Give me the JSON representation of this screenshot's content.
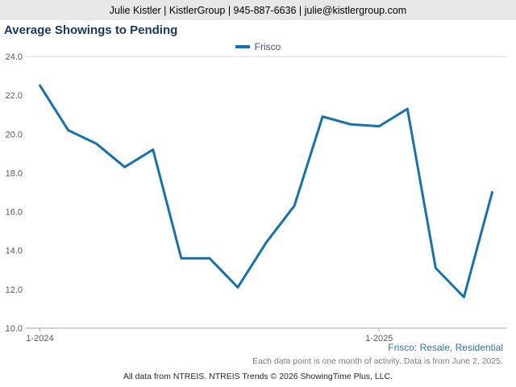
{
  "header": {
    "contact": "Julie Kistler | KistlerGroup | 945-887-6636 | julie@kistlergroup.com"
  },
  "chart": {
    "title": "Average Showings to Pending",
    "legend_label": "Frisco"
  },
  "footer": {
    "series_note": "Frisco: Resale, Residential",
    "data_note": "Each data point is one month of activity. Data is from June 2, 2025.",
    "attribution": "All data from NTREIS. NTREIS Trends © 2026 ShowingTime Plus, LLC."
  },
  "colors": {
    "line": "#1272b4",
    "title": "#17375e",
    "header_bg": "#e7e7e7",
    "link": "#2e74b5",
    "axis": "#a6a6a6",
    "plot_border": "#d9d9d9",
    "tick_text": "#595959"
  },
  "chart_data": {
    "type": "line",
    "title": "Average Showings to Pending",
    "xlabel": "",
    "ylabel": "",
    "x": [
      "1-2024",
      "2-2024",
      "3-2024",
      "4-2024",
      "5-2024",
      "6-2024",
      "7-2024",
      "8-2024",
      "9-2024",
      "10-2024",
      "11-2024",
      "12-2024",
      "1-2025",
      "2-2025",
      "3-2025",
      "4-2025",
      "5-2025"
    ],
    "series": [
      {
        "name": "Frisco",
        "values": [
          22.5,
          20.2,
          19.5,
          18.3,
          19.2,
          13.6,
          13.6,
          12.1,
          14.4,
          16.3,
          20.9,
          20.5,
          20.4,
          21.3,
          13.1,
          11.6,
          17.0
        ]
      }
    ],
    "ylim": [
      10.0,
      24.0
    ],
    "yticks": [
      10.0,
      12.0,
      14.0,
      16.0,
      18.0,
      20.0,
      22.0,
      24.0
    ],
    "xticks": [
      {
        "index": 0,
        "label": "1-2024"
      },
      {
        "index": 12,
        "label": "1-2025"
      }
    ],
    "grid": false,
    "legend_position": "top-center"
  }
}
